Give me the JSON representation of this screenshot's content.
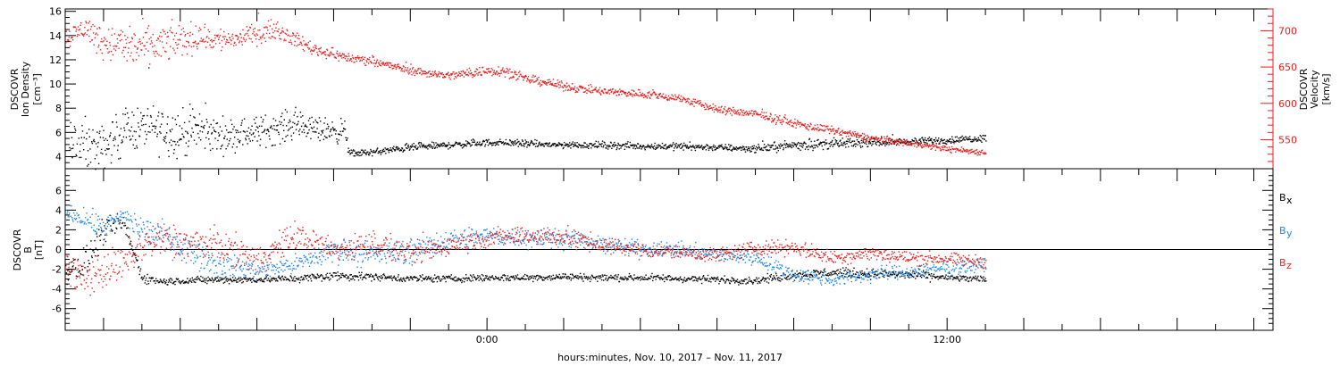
{
  "chart_data": [
    {
      "type": "scatter",
      "panel": "top",
      "ylabel": [
        "DSCOVR",
        "Ion Density",
        "[cm⁻³]"
      ],
      "ylabel_right": [
        "DSCOVR",
        "Velocity",
        "[km/s]"
      ],
      "x_range_hours": [
        -11,
        20.5
      ],
      "data_end_hours": 13.0,
      "ylim_left": [
        3,
        16.2
      ],
      "yticks_left": [
        4,
        6,
        8,
        10,
        12,
        14,
        16
      ],
      "ylim_right": [
        510,
        730
      ],
      "yticks_right": [
        550,
        600,
        650,
        700
      ],
      "right_axis_color": "#e8201e",
      "series": [
        {
          "name": "Ion Density",
          "axis": "left",
          "color": "#000000",
          "x": [
            -10.9,
            -10,
            -9.5,
            -9,
            -8.5,
            -8,
            -7.5,
            -7,
            -6.5,
            -6,
            -5.5,
            -5,
            -4.5,
            -4,
            -3.7,
            -3.6,
            -3,
            -2.5,
            -2,
            -1.5,
            -1,
            -0.5,
            0,
            0.5,
            1,
            2,
            3,
            4,
            5,
            6,
            7,
            8,
            9,
            10,
            11,
            12,
            13
          ],
          "y": [
            4.5,
            4.8,
            6.2,
            6.5,
            6.3,
            6.0,
            6.2,
            5.8,
            5.9,
            6.1,
            6.4,
            6.7,
            6.3,
            6.2,
            6.1,
            4.3,
            4.4,
            4.6,
            4.8,
            4.9,
            5.0,
            5.1,
            5.2,
            5.2,
            5.1,
            5.0,
            5.0,
            4.9,
            4.9,
            4.8,
            4.7,
            5.0,
            5.1,
            5.2,
            5.3,
            5.4,
            5.6
          ],
          "scatter": [
            2.2,
            1.2,
            1.3,
            1.2,
            1.4,
            1.4,
            1.2,
            1.0,
            0.9,
            0.9,
            0.9,
            0.8,
            0.7,
            0.7,
            0.7,
            0.2,
            0.2,
            0.2,
            0.2,
            0.2,
            0.2,
            0.2,
            0.2,
            0.2,
            0.2,
            0.2,
            0.2,
            0.2,
            0.2,
            0.2,
            0.2,
            0.3,
            0.3,
            0.2,
            0.2,
            0.2,
            0.2
          ]
        },
        {
          "name": "Velocity",
          "axis": "right",
          "color": "#e8201e",
          "x": [
            -11,
            -10.5,
            -10,
            -9.5,
            -9,
            -8.5,
            -8,
            -7.5,
            -7,
            -6.5,
            -6,
            -5.5,
            -5,
            -4.5,
            -4,
            -3.5,
            -3,
            -2.5,
            -2,
            -1.5,
            -1,
            -0.5,
            0,
            0.5,
            1,
            1.5,
            2,
            3,
            4,
            5,
            6,
            7,
            8,
            9,
            10,
            11,
            12,
            13
          ],
          "y": [
            690,
            705,
            685,
            680,
            678,
            682,
            688,
            692,
            688,
            690,
            697,
            702,
            688,
            675,
            668,
            662,
            660,
            652,
            646,
            642,
            639,
            642,
            646,
            645,
            634,
            630,
            624,
            617,
            614,
            608,
            592,
            586,
            573,
            563,
            553,
            546,
            538,
            533
          ],
          "scatter": [
            9,
            11,
            16,
            20,
            20,
            18,
            16,
            14,
            12,
            10,
            9,
            8,
            7,
            6,
            5,
            5,
            4,
            4,
            4,
            4,
            4,
            5,
            5,
            5,
            4,
            4,
            4,
            4,
            4,
            4,
            4,
            4,
            4,
            4,
            3,
            3,
            3,
            3
          ]
        }
      ]
    },
    {
      "type": "scatter",
      "panel": "bottom",
      "ylabel": [
        "DSCOVR",
        "B",
        "[nT]"
      ],
      "x_range_hours": [
        -11,
        20.5
      ],
      "data_end_hours": 13.0,
      "ylim": [
        -8.2,
        8.2
      ],
      "yticks": [
        -6,
        -4,
        -2,
        0,
        2,
        4,
        6
      ],
      "zero_line": true,
      "xticks_hours": [
        0,
        12
      ],
      "xtick_labels": [
        "0:00",
        "12:00"
      ],
      "xlabel": "hours:minutes, Nov. 10, 2017 – Nov. 11, 2017",
      "legend": [
        {
          "label": "B",
          "sub": "x",
          "color": "#000000"
        },
        {
          "label": "B",
          "sub": "y",
          "color": "#1f86ea"
        },
        {
          "label": "B",
          "sub": "z",
          "color": "#e8201e"
        }
      ],
      "series": [
        {
          "name": "Bx",
          "color": "#000000",
          "x": [
            -11,
            -10.5,
            -10,
            -9.5,
            -9,
            -8.5,
            -8,
            -7,
            -6,
            -5,
            -4,
            -3,
            -2,
            -1,
            0,
            1,
            2,
            3,
            4,
            5,
            6,
            7,
            8,
            9,
            10,
            11,
            12,
            13
          ],
          "y": [
            -2.0,
            -1.5,
            2.0,
            2.8,
            -2.8,
            -3.2,
            -3.1,
            -3.0,
            -3.0,
            -2.9,
            -2.6,
            -2.7,
            -2.9,
            -2.9,
            -2.8,
            -2.8,
            -2.7,
            -2.8,
            -2.8,
            -2.9,
            -3.0,
            -3.1,
            -2.5,
            -2.3,
            -2.4,
            -2.5,
            -2.8,
            -3.0
          ],
          "scatter": [
            1.2,
            1.4,
            1.0,
            0.8,
            0.4,
            0.3,
            0.3,
            0.3,
            0.3,
            0.3,
            0.4,
            0.3,
            0.3,
            0.3,
            0.3,
            0.3,
            0.3,
            0.3,
            0.3,
            0.3,
            0.3,
            0.3,
            0.4,
            0.4,
            0.4,
            0.4,
            0.3,
            0.3
          ]
        },
        {
          "name": "By",
          "color": "#1f86ea",
          "x": [
            -11,
            -10.5,
            -10,
            -9.5,
            -9,
            -8.5,
            -8,
            -7,
            -6,
            -5,
            -4,
            -3,
            -2,
            -1,
            0,
            1,
            2,
            3,
            4,
            5,
            6,
            7,
            8,
            9,
            10,
            11,
            12,
            13
          ],
          "y": [
            3.8,
            3.2,
            2.2,
            3.5,
            2.0,
            1.5,
            0.5,
            -1.5,
            -2.0,
            -1.5,
            0.0,
            -0.5,
            0.0,
            1.0,
            1.5,
            1.2,
            1.3,
            0.5,
            0.2,
            0.0,
            -0.5,
            -0.8,
            -2.5,
            -3.0,
            -2.5,
            -2.2,
            -1.8,
            -1.5
          ],
          "scatter": [
            0.6,
            0.8,
            1.0,
            0.8,
            1.2,
            1.2,
            1.2,
            1.0,
            0.8,
            0.8,
            1.0,
            1.0,
            1.0,
            1.0,
            0.8,
            0.8,
            0.8,
            0.6,
            0.6,
            0.6,
            0.6,
            0.6,
            0.6,
            0.6,
            0.6,
            0.6,
            0.6,
            0.6
          ]
        },
        {
          "name": "Bz",
          "color": "#e8201e",
          "x": [
            -11,
            -10.5,
            -10,
            -9.5,
            -9,
            -8.5,
            -8,
            -7,
            -6,
            -5,
            -4,
            -3,
            -2,
            -1,
            0,
            1,
            2,
            3,
            4,
            5,
            6,
            7,
            8,
            9,
            10,
            11,
            12,
            13
          ],
          "y": [
            -1.5,
            -3.0,
            -2.0,
            -1.5,
            0.5,
            1.0,
            0.8,
            0.5,
            -1.0,
            1.5,
            0.0,
            0.8,
            -0.5,
            0.5,
            1.2,
            1.5,
            1.3,
            0.5,
            0.0,
            -0.2,
            -0.5,
            0.2,
            0.3,
            -0.8,
            -0.3,
            -0.8,
            -0.9,
            -1.2
          ],
          "scatter": [
            1.2,
            1.5,
            1.5,
            1.5,
            1.5,
            1.5,
            1.4,
            1.3,
            1.2,
            1.2,
            1.0,
            1.0,
            1.0,
            0.8,
            0.8,
            0.8,
            0.8,
            0.7,
            0.6,
            0.6,
            0.6,
            0.6,
            0.6,
            0.6,
            0.6,
            0.6,
            0.5,
            0.5
          ]
        }
      ]
    }
  ]
}
